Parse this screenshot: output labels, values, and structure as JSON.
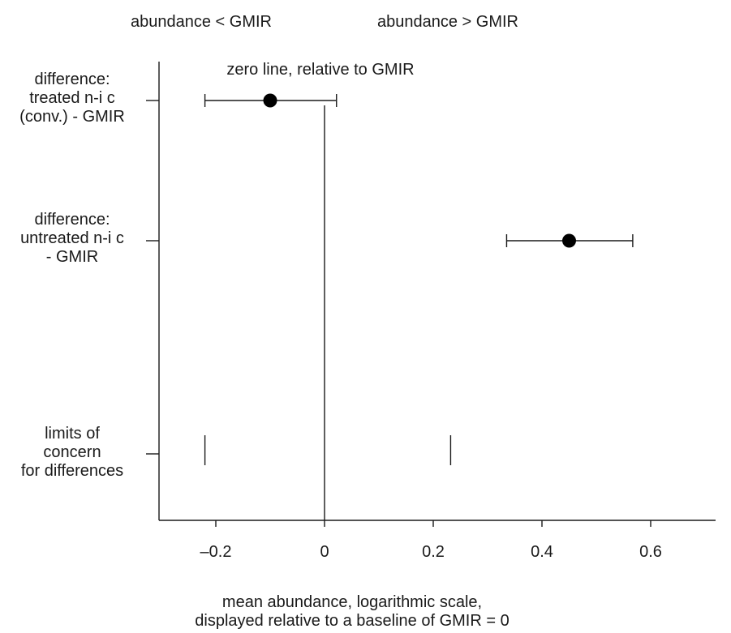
{
  "chart_data": {
    "type": "scatter",
    "title": "",
    "header_left": "abundance < GMIR",
    "header_right": "abundance > GMIR",
    "annotation": "zero line, relative to GMIR",
    "xlabel_line1": "mean abundance, logarithmic scale,",
    "xlabel_line2": "displayed relative to a baseline of GMIR = 0",
    "xlim": [
      -0.31,
      0.75
    ],
    "x_ticks": [
      -0.2,
      0,
      0.2,
      0.4,
      0.6
    ],
    "x_tick_labels": [
      "–0.2",
      "0",
      "0.2",
      "0.4",
      "0.6"
    ],
    "rows": [
      {
        "label_lines": [
          "difference:",
          "treated n-i c",
          "(conv.) - GMIR"
        ],
        "estimate": -0.1,
        "ci_low": -0.22,
        "ci_high": 0.022
      },
      {
        "label_lines": [
          "difference:",
          "untreated n-i c",
          "- GMIR"
        ],
        "estimate": 0.45,
        "ci_low": 0.335,
        "ci_high": 0.567
      },
      {
        "label_lines": [
          "limits of",
          "concern",
          "for differences"
        ],
        "limits": [
          -0.22,
          0.232
        ]
      }
    ],
    "grid": false,
    "colors": {
      "ink": "#1a1a1a",
      "marker": "#000000"
    }
  }
}
